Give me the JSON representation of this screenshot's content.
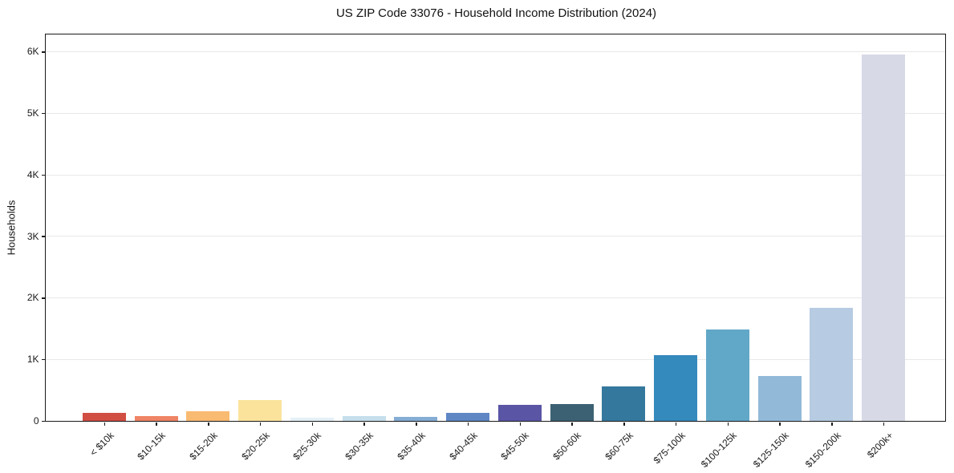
{
  "figure": {
    "background": "#ffffff",
    "axis_color": "#1a1a1a",
    "gridline_color": "#e8e8e8"
  },
  "chart_data": {
    "type": "bar",
    "title": "US ZIP Code 33076 - Household Income Distribution (2024)",
    "xlabel": "",
    "ylabel": "Households",
    "categories": [
      "< $10k",
      "$10-15k",
      "$15-20k",
      "$20-25k",
      "$25-30k",
      "$30-35k",
      "$35-40k",
      "$40-45k",
      "$45-50k",
      "$50-60k",
      "$60-75k",
      "$75-100k",
      "$100-125k",
      "$125-150k",
      "$150-200k",
      "$200k+"
    ],
    "values": [
      130,
      75,
      160,
      340,
      55,
      75,
      70,
      135,
      265,
      270,
      555,
      1075,
      1480,
      735,
      1840,
      5960
    ],
    "bar_colors": [
      "#d14e43",
      "#ef8466",
      "#f9ba71",
      "#fbe39c",
      "#e4f0f6",
      "#c5dfeb",
      "#85add5",
      "#5e87c4",
      "#5a55a5",
      "#3c6173",
      "#35789e",
      "#3489bd",
      "#61a7c8",
      "#92bad8",
      "#b7cbe2",
      "#d7d9e7"
    ],
    "ylim": [
      0,
      6280
    ],
    "yticks": {
      "values": [
        0,
        1000,
        2000,
        3000,
        4000,
        5000,
        6000
      ],
      "labels": [
        "0",
        "1K",
        "2K",
        "3K",
        "4K",
        "5K",
        "6K"
      ]
    },
    "grid": "horizontal-only",
    "legend": "none"
  }
}
